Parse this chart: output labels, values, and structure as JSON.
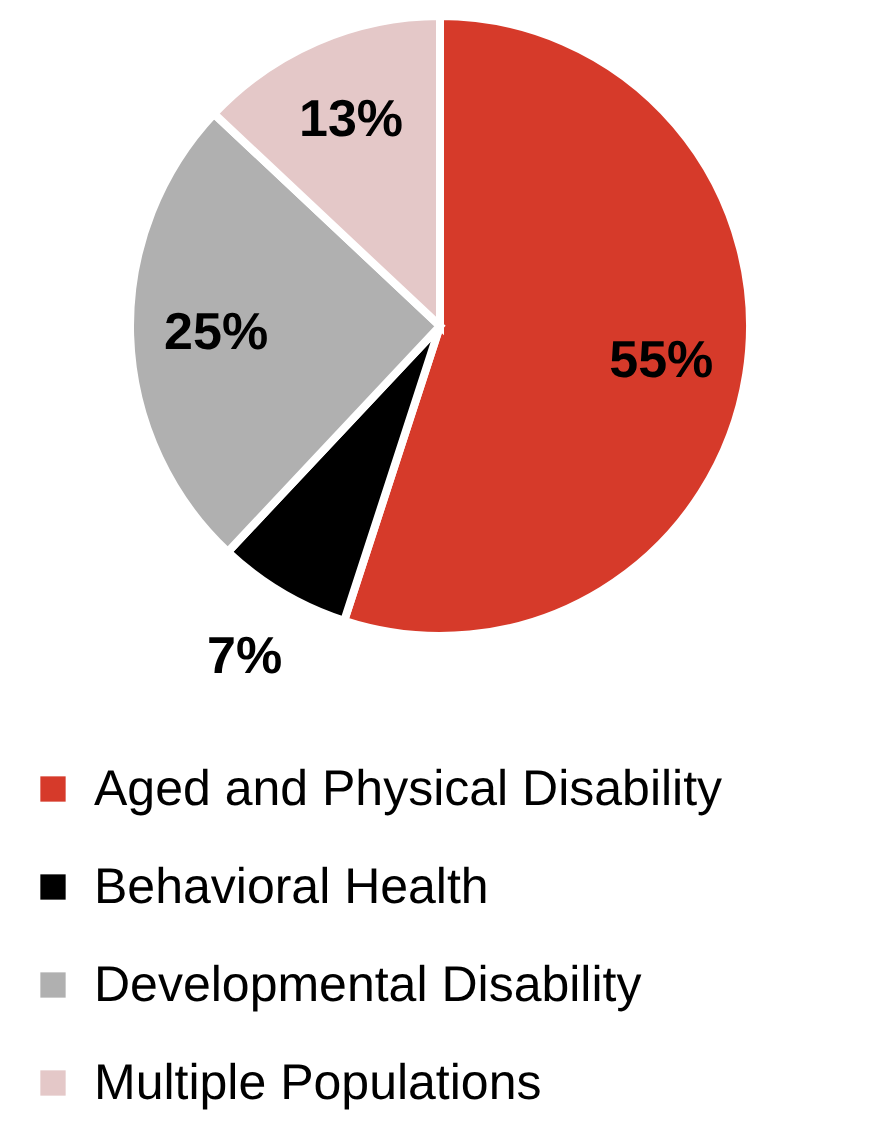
{
  "chart_data": {
    "type": "pie",
    "categories": [
      "Aged and Physical Disability",
      "Behavioral Health",
      "Developmental Disability",
      "Multiple Populations"
    ],
    "values": [
      55,
      7,
      25,
      13
    ],
    "colors": [
      "#d63a2a",
      "#000000",
      "#b0b0b0",
      "#e4c8c8"
    ],
    "value_labels": [
      "55%",
      "7%",
      "25%",
      "13%"
    ],
    "legend": "bottom"
  }
}
